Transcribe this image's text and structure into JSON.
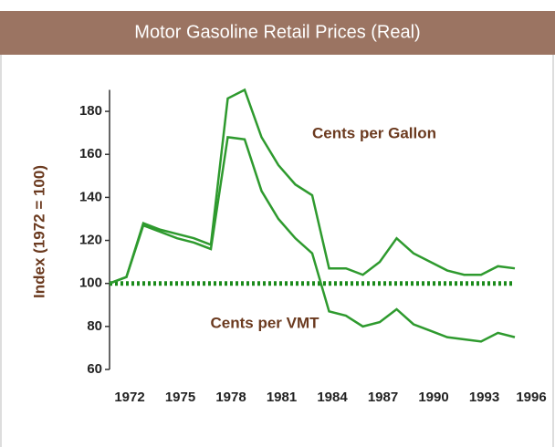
{
  "chart_data": {
    "type": "line",
    "header": "Motor Gasoline Retail Prices (Real)",
    "ylabel": "Index (1972 = 100)",
    "x": [
      1972,
      1973,
      1974,
      1975,
      1976,
      1977,
      1978,
      1979,
      1980,
      1981,
      1982,
      1983,
      1984,
      1985,
      1986,
      1987,
      1988,
      1989,
      1990,
      1991,
      1992,
      1993,
      1994,
      1995,
      1996
    ],
    "series": [
      {
        "name": "Cents per Gallon",
        "color": "#2e9a2e",
        "values": [
          100,
          103,
          128,
          125,
          123,
          121,
          118,
          186,
          190,
          168,
          155,
          146,
          141,
          107,
          107,
          104,
          110,
          121,
          114,
          110,
          106,
          104,
          104,
          108,
          107
        ]
      },
      {
        "name": "Cents per VMT",
        "color": "#2e9a2e",
        "values": [
          100,
          103,
          127,
          124,
          121,
          119,
          116,
          168,
          167,
          143,
          130,
          121,
          114,
          87,
          85,
          80,
          82,
          88,
          81,
          78,
          75,
          74,
          73,
          77,
          75
        ]
      }
    ],
    "reference_line": {
      "value": 100,
      "color": "#1a8a1a"
    },
    "xlim": [
      1972,
      1996
    ],
    "xticks": [
      1972,
      1975,
      1978,
      1981,
      1984,
      1987,
      1990,
      1993,
      1996
    ],
    "ylim": [
      60,
      190
    ],
    "yticks": [
      60,
      80,
      100,
      120,
      140,
      160,
      180
    ]
  }
}
